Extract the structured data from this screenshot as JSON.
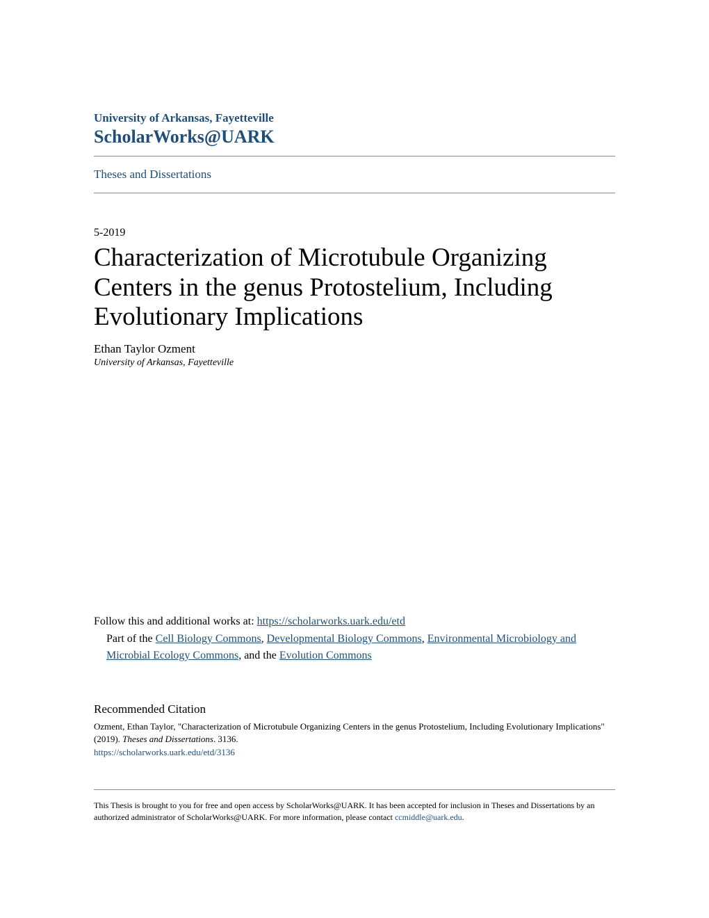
{
  "header": {
    "institution": "University of Arkansas, Fayetteville",
    "repository": "ScholarWorks@UARK",
    "collection": "Theses and Dissertations"
  },
  "document": {
    "date": "5-2019",
    "title": "Characterization of Microtubule Organizing Centers in the genus Protostelium, Including Evolutionary Implications",
    "author": "Ethan Taylor Ozment",
    "author_affiliation": "University of Arkansas, Fayetteville"
  },
  "follow": {
    "prefix": "Follow this and additional works at: ",
    "url": "https://scholarworks.uark.edu/etd"
  },
  "partof": {
    "prefix": "Part of the ",
    "link1": "Cell Biology Commons",
    "sep1": ", ",
    "link2": "Developmental Biology Commons",
    "sep2": ", ",
    "link3": "Environmental Microbiology and Microbial Ecology Commons",
    "sep3": ", and the ",
    "link4": "Evolution Commons"
  },
  "citation": {
    "heading": "Recommended Citation",
    "text_part1": "Ozment, Ethan Taylor, \"Characterization of Microtubule Organizing Centers in the genus Protostelium, Including Evolutionary Implications\" (2019). ",
    "text_italic": "Theses and Dissertations",
    "text_part2": ". 3136.",
    "url": "https://scholarworks.uark.edu/etd/3136"
  },
  "footer": {
    "text_part1": "This Thesis is brought to you for free and open access by ScholarWorks@UARK. It has been accepted for inclusion in Theses and Dissertations by an authorized administrator of ScholarWorks@UARK. For more information, please contact ",
    "email": "ccmiddle@uark.edu",
    "text_part2": "."
  },
  "colors": {
    "link_color": "#1f4e79",
    "text_color": "#000000",
    "hr_color": "#888888",
    "background": "#ffffff"
  }
}
